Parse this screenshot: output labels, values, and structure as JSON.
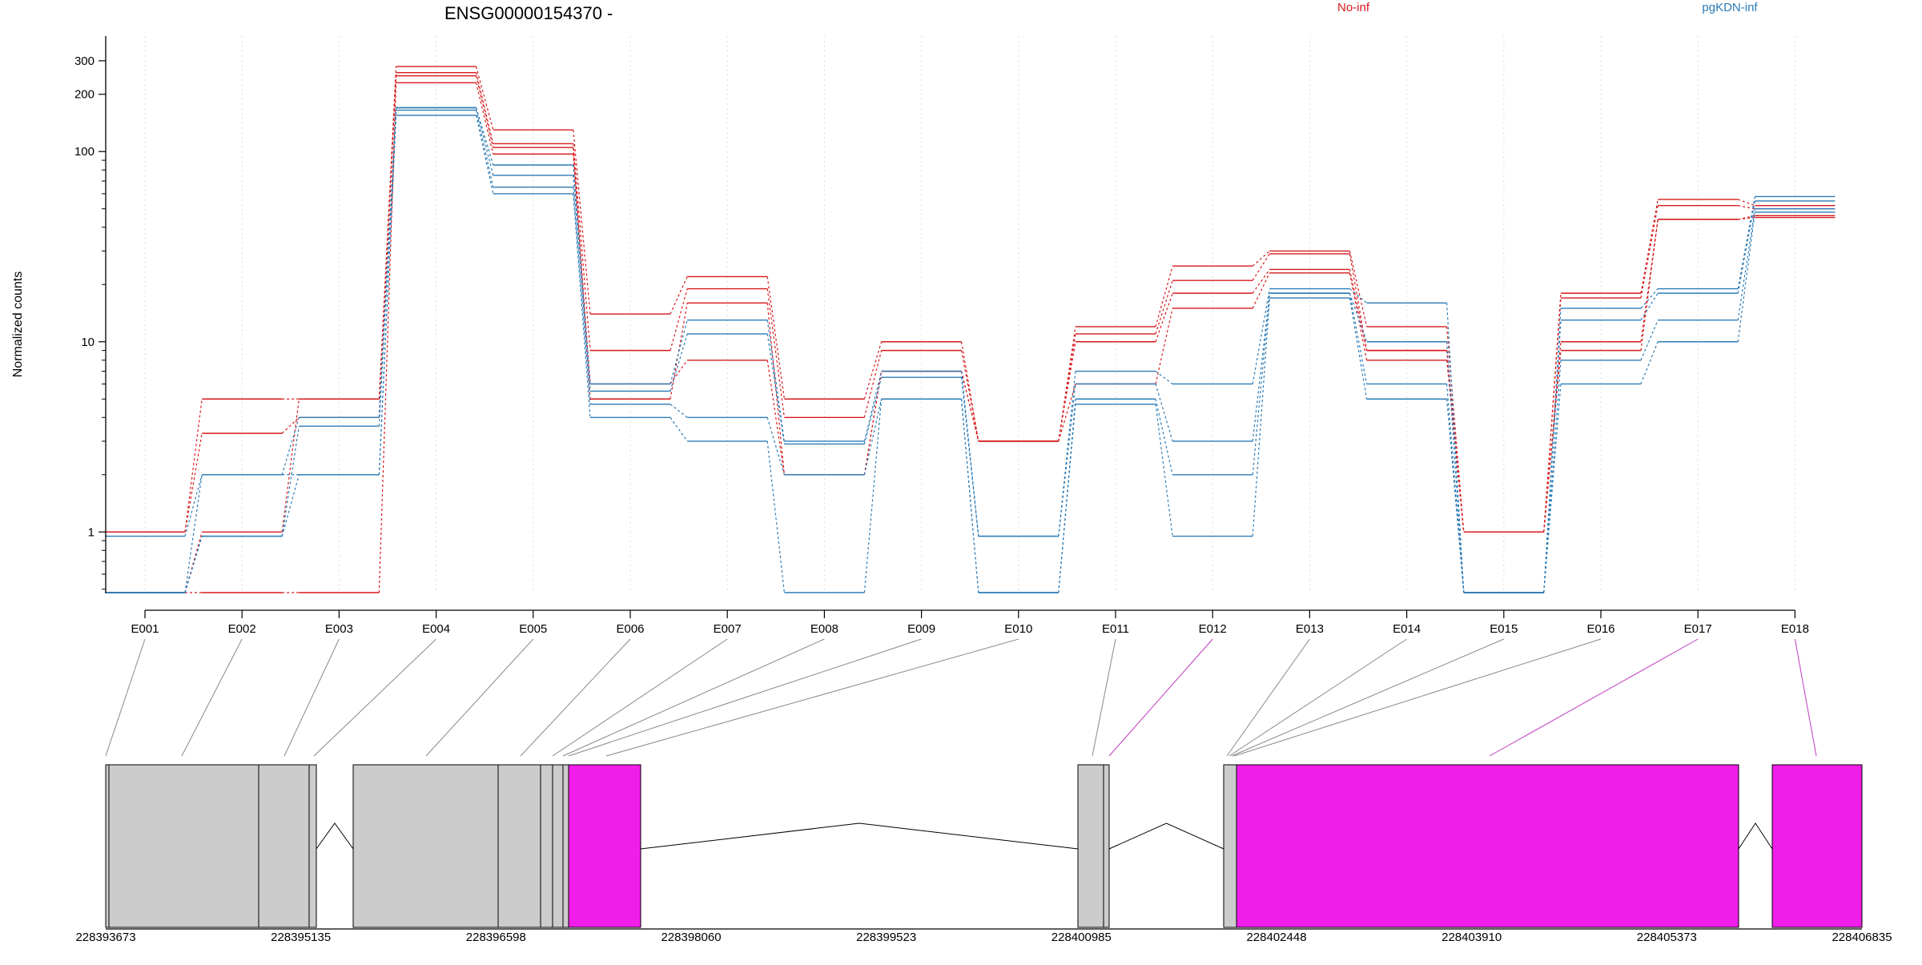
{
  "chart_data": {
    "type": "line",
    "title": "ENSG00000154370 -",
    "ylabel": "Normalized counts",
    "xlabel": "",
    "y_scale": "log",
    "y_ticks": [
      1,
      10,
      100,
      200,
      300
    ],
    "y_tick_labels": [
      "1",
      "10",
      "100",
      "200",
      "300"
    ],
    "ylim": [
      0.48,
      350
    ],
    "grid": "vertical dotted",
    "legend_placement": "top-right",
    "categories": [
      "E001",
      "E002",
      "E003",
      "E004",
      "E005",
      "E006",
      "E007",
      "E008",
      "E009",
      "E010",
      "E011",
      "E012",
      "E013",
      "E014",
      "E015",
      "E016",
      "E017",
      "E018"
    ],
    "series": [
      {
        "name": "No-inf",
        "color": "#d7191c",
        "values": [
          1.0,
          5.0,
          5.0,
          280,
          130,
          14,
          22,
          5.0,
          10,
          3.0,
          12,
          25,
          30,
          12,
          1.0,
          18,
          56,
          52
        ]
      },
      {
        "name": "No-inf",
        "color": "#d7191c",
        "values": [
          1.0,
          3.3,
          4.0,
          260,
          110,
          9,
          19,
          4.0,
          9,
          3.0,
          11,
          21,
          29,
          9,
          1.0,
          17,
          52,
          50
        ]
      },
      {
        "name": "No-inf",
        "color": "#d7191c",
        "values": [
          0.48,
          1.0,
          5.0,
          250,
          105,
          5,
          16,
          2.0,
          7,
          3.0,
          10,
          18,
          24,
          9,
          1.0,
          10,
          44,
          46
        ]
      },
      {
        "name": "No-inf",
        "color": "#d7191c",
        "values": [
          0.48,
          0.48,
          0.48,
          230,
          97,
          6,
          8,
          2.0,
          7,
          3.0,
          6,
          15,
          23,
          8,
          1.0,
          9,
          44,
          45
        ]
      },
      {
        "name": "pgKDN-inf",
        "color": "#2c7bb6",
        "values": [
          0.95,
          2.0,
          4.0,
          170,
          85,
          6,
          13,
          3.0,
          7,
          0.95,
          7,
          6,
          19,
          16,
          0.48,
          15,
          19,
          58
        ]
      },
      {
        "name": "pgKDN-inf",
        "color": "#2c7bb6",
        "values": [
          0.48,
          0.95,
          3.6,
          170,
          75,
          5.5,
          11,
          2.9,
          6.5,
          0.95,
          6,
          3.0,
          18,
          10,
          0.48,
          13,
          18,
          55
        ]
      },
      {
        "name": "pgKDN-inf",
        "color": "#2c7bb6",
        "values": [
          0.48,
          2.0,
          2.0,
          165,
          65,
          4.7,
          4.0,
          2.0,
          5.0,
          0.48,
          5.0,
          2.0,
          18,
          6,
          0.48,
          8,
          13,
          50
        ]
      },
      {
        "name": "pgKDN-inf",
        "color": "#2c7bb6",
        "values": [
          0.48,
          0.95,
          2.0,
          155,
          60,
          4.0,
          3.0,
          0.48,
          5.0,
          0.48,
          4.7,
          0.95,
          17,
          5,
          0.48,
          6,
          10,
          48
        ]
      }
    ],
    "legend": [
      {
        "label": "No-inf",
        "color": "#d7191c"
      },
      {
        "label": "pgKDN-inf",
        "color": "#2c7bb6"
      }
    ],
    "gene_model": {
      "coordinate_ticks": [
        "228393673",
        "228395135",
        "228396598",
        "228398060",
        "228399523",
        "228400985",
        "228402448",
        "228403910",
        "228405373",
        "228406835"
      ],
      "exon_fill_normal": "#cccccc",
      "exon_fill_highlight": "#f01ee8",
      "highlighted_exons": [
        "E012",
        "E017",
        "E018"
      ]
    }
  }
}
